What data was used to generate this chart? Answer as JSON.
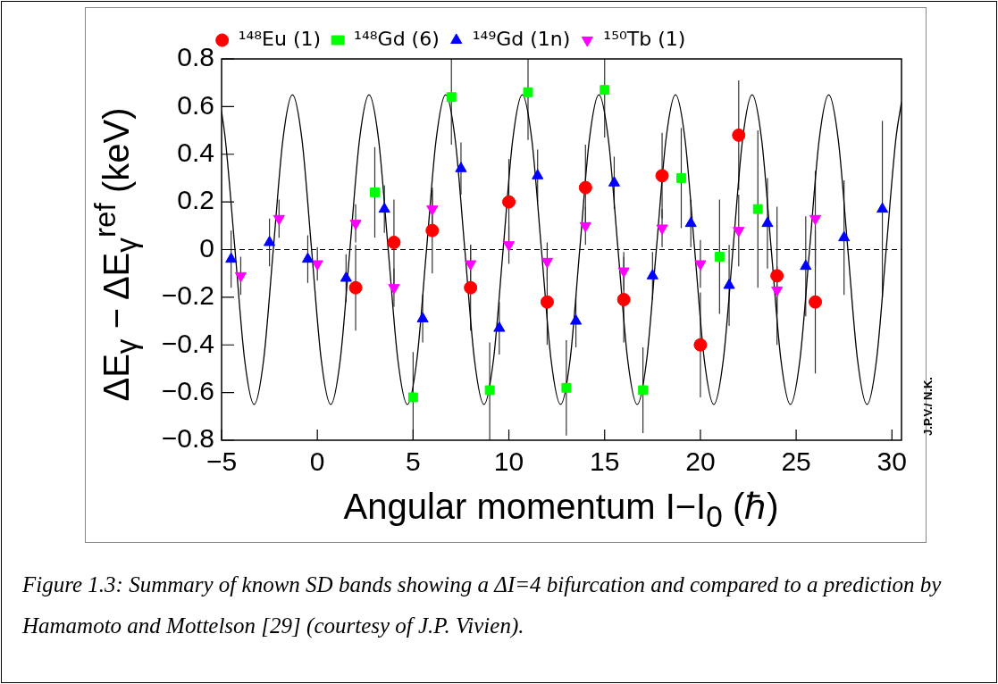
{
  "chart_data": {
    "type": "scatter",
    "xlabel": "Angular momentum I−I$_{0}$ (ℏ)",
    "ylabel": "ΔE$_{γ}$ − ΔE$_{γ}$$^{ref}$ (keV)",
    "xlim": [
      -5,
      30.5
    ],
    "ylim": [
      -0.8,
      0.8
    ],
    "xticks": [
      {
        "value": -5,
        "label": "−5"
      },
      0,
      5,
      10,
      15,
      20,
      25,
      30
    ],
    "yticks": [
      {
        "value": -0.8,
        "label": "−0.8"
      },
      {
        "value": -0.6,
        "label": "−0.6"
      },
      {
        "value": -0.4,
        "label": "−0.4"
      },
      {
        "value": -0.2,
        "label": "−0.2"
      },
      0,
      0.2,
      0.4,
      0.6,
      0.8
    ],
    "grid": false,
    "legend": "top",
    "ref_lines": [
      {
        "axis": "y",
        "value": 0,
        "color": "#000000",
        "line_style": "dashed"
      }
    ],
    "annotations": [
      "J.P.V./ N.K.",
      "Figure 1.3: Summary of known SD bands showing a ΔI=4 bifurcation and compared to a prediction by Hamamoto and Mottelson [29] (courtesy of J.P. Vivien)."
    ],
    "series": [
      {
        "type": "line",
        "color": "#000000",
        "marker": "none",
        "line_style": "solid",
        "x": [
          -5,
          -4.8,
          -4.3,
          -3.8,
          -3.3,
          -2.8,
          -2.3,
          -1.8,
          -1.3,
          -0.8,
          -0.3,
          0.2,
          0.7,
          1.2,
          1.7,
          2.2,
          2.7,
          3.2,
          3.7,
          4.2,
          4.7,
          5.2,
          5.7,
          6.2,
          6.7,
          7.2,
          7.7,
          8.2,
          8.7,
          9.2,
          9.7,
          10.2,
          10.7,
          11.2,
          11.7,
          12.2,
          12.7,
          13.2,
          13.7,
          14.2,
          14.7,
          15.2,
          15.7,
          16.2,
          16.7,
          17.2,
          17.7,
          18.2,
          18.7,
          19.2,
          19.7,
          20.2,
          20.7,
          21.2,
          21.7,
          22.2,
          22.7,
          23.2,
          23.7,
          24.2,
          24.7,
          25.2,
          25.7,
          26.2,
          26.7,
          27.2,
          27.7,
          28.2,
          28.7,
          29.2,
          29.7,
          30.2,
          30.5
        ],
        "values": [
          0.58,
          0.46,
          0,
          -0.46,
          -0.65,
          -0.46,
          0,
          0.46,
          0.65,
          0.46,
          0,
          -0.46,
          -0.65,
          -0.46,
          0,
          0.46,
          0.65,
          0.46,
          0,
          -0.46,
          -0.65,
          -0.46,
          0,
          0.46,
          0.65,
          0.46,
          0,
          -0.46,
          -0.65,
          -0.46,
          0,
          0.46,
          0.65,
          0.46,
          0,
          -0.46,
          -0.65,
          -0.46,
          0,
          0.46,
          0.65,
          0.46,
          0,
          -0.46,
          -0.65,
          -0.46,
          0,
          0.46,
          0.65,
          0.46,
          0,
          -0.46,
          -0.65,
          -0.46,
          0,
          0.46,
          0.65,
          0.46,
          0,
          -0.46,
          -0.65,
          -0.46,
          0,
          0.46,
          0.65,
          0.46,
          0,
          -0.46,
          -0.65,
          -0.46,
          0,
          0.46,
          0.62
        ]
      },
      {
        "name": "¹⁴⁸Eu (1)",
        "type": "scatter",
        "color": "#ff0000",
        "marker": "circle",
        "x": [
          2,
          4,
          6,
          8,
          10,
          12,
          14,
          16,
          18,
          20,
          22,
          24,
          26
        ],
        "values": [
          -0.16,
          0.03,
          0.08,
          -0.16,
          0.2,
          -0.22,
          0.26,
          -0.21,
          0.31,
          -0.4,
          0.48,
          -0.11,
          -0.22
        ],
        "errors": [
          0.18,
          0.18,
          0.18,
          0.18,
          0.18,
          0.18,
          0.18,
          0.18,
          0.18,
          0.22,
          0.23,
          0.29,
          0.3
        ]
      },
      {
        "name": "¹⁴⁸Gd (6)",
        "type": "scatter",
        "color": "#00ff00",
        "marker": "square",
        "x": [
          3,
          5,
          7,
          9,
          11,
          13,
          15,
          17,
          19,
          21,
          23
        ],
        "values": [
          0.24,
          -0.62,
          0.64,
          -0.59,
          0.66,
          -0.58,
          0.67,
          -0.59,
          0.3,
          -0.03,
          0.17
        ],
        "errors": [
          0.19,
          [
            -0.8,
            -0.43
          ],
          [
            0.44,
            0.8
          ],
          [
            -0.8,
            -0.39
          ],
          [
            0.46,
            0.8
          ],
          0.2,
          [
            0.47,
            0.8
          ],
          0.18,
          0.21,
          0.24,
          0.33
        ]
      },
      {
        "name": "¹⁴⁹Gd (1n)",
        "type": "scatter",
        "color": "#0000ff",
        "marker": "triangle",
        "x": [
          -4.5,
          -2.5,
          -0.5,
          1.5,
          3.5,
          5.5,
          7.5,
          9.5,
          11.5,
          13.5,
          15.5,
          17.5,
          19.5,
          21.5,
          23.5,
          25.5,
          27.5,
          29.5
        ],
        "values": [
          -0.04,
          0.03,
          -0.04,
          -0.12,
          0.17,
          -0.29,
          0.34,
          -0.33,
          0.31,
          -0.3,
          0.28,
          -0.11,
          0.11,
          -0.15,
          0.11,
          -0.07,
          0.05,
          0.17
        ],
        "errors": [
          0.12,
          0.1,
          0.1,
          0.1,
          0.1,
          0.1,
          0.11,
          0.11,
          0.11,
          0.11,
          0.11,
          0.1,
          0.1,
          0.17,
          0.19,
          0.21,
          0.24,
          0.37
        ]
      },
      {
        "name": "¹⁵⁰Tb (1)",
        "type": "scatter",
        "color": "#ff00ff",
        "marker": "triangle_down",
        "x": [
          -4,
          -2,
          0,
          2,
          4,
          6,
          8,
          10,
          12,
          14,
          16,
          18,
          20,
          22,
          24,
          26
        ],
        "values": [
          -0.11,
          0.13,
          -0.06,
          0.11,
          -0.16,
          0.17,
          -0.06,
          0.02,
          -0.05,
          0.1,
          -0.09,
          0.09,
          -0.06,
          0.08,
          -0.17,
          0.13
        ],
        "errors": [
          0.08,
          0.08,
          0.07,
          0.08,
          0.08,
          0.08,
          0.08,
          0.08,
          0.08,
          0.08,
          0.08,
          0.08,
          0.1,
          0.15,
          0.1,
          0.2
        ]
      }
    ]
  }
}
